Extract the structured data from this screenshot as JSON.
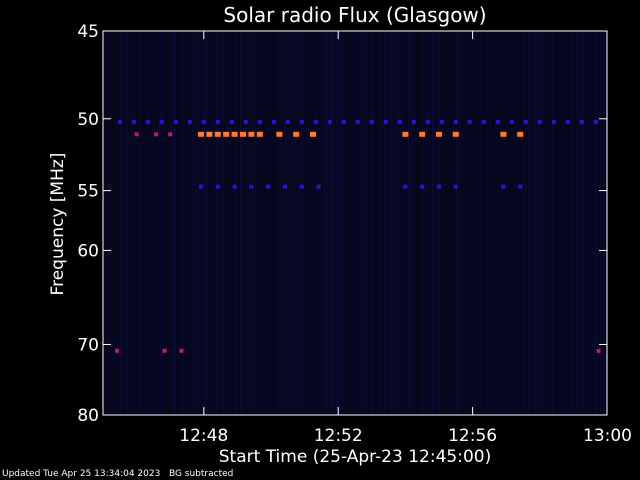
{
  "chart_data": {
    "type": "heatmap",
    "title": "Solar radio Flux (Glasgow)",
    "xlabel": "Start Time (25-Apr-23 12:45:00)",
    "ylabel": "Frequency [MHz]",
    "x_range": [
      "12:45",
      "13:00"
    ],
    "y_range": [
      45,
      80
    ],
    "x_ticks": [
      "12:48",
      "12:52",
      "12:56",
      "13:00"
    ],
    "y_ticks": [
      "45",
      "50",
      "55",
      "60",
      "70",
      "80"
    ],
    "colors": {
      "background": "#000000",
      "plot_background": "#06061a",
      "low": "#1a1ad8",
      "mid": "#c01878",
      "high": "#ff7a30",
      "axes": "#ffffff"
    },
    "features": [
      {
        "freq_mhz": 50.2,
        "level": "low",
        "times": [
          "12:45:30",
          "12:45:55",
          "12:46:20",
          "12:46:45",
          "12:47:10",
          "12:47:35",
          "12:48:00",
          "12:48:25",
          "12:48:50",
          "12:49:15",
          "12:49:40",
          "12:50:05",
          "12:50:30",
          "12:50:55",
          "12:51:20",
          "12:51:45",
          "12:52:10",
          "12:52:35",
          "12:53:00",
          "12:53:25",
          "12:53:50",
          "12:54:15",
          "12:54:40",
          "12:55:05",
          "12:55:30",
          "12:55:55",
          "12:56:20",
          "12:56:45",
          "12:57:10",
          "12:57:35",
          "12:58:00",
          "12:58:25",
          "12:58:50",
          "12:59:15",
          "12:59:40"
        ]
      },
      {
        "freq_mhz": 51.0,
        "level": "mid",
        "times": [
          "12:46:00",
          "12:46:35",
          "12:47:00"
        ]
      },
      {
        "freq_mhz": 51.0,
        "level": "high",
        "times": [
          "12:47:55",
          "12:48:10",
          "12:48:25",
          "12:48:40",
          "12:48:55",
          "12:49:10",
          "12:49:25",
          "12:49:40",
          "12:50:15",
          "12:50:45",
          "12:51:15",
          "12:54:00",
          "12:54:30",
          "12:55:00",
          "12:55:30",
          "12:56:55",
          "12:57:25"
        ]
      },
      {
        "freq_mhz": 54.7,
        "level": "low",
        "times": [
          "12:47:55",
          "12:48:25",
          "12:48:55",
          "12:49:25",
          "12:49:55",
          "12:50:25",
          "12:50:55",
          "12:51:25",
          "12:54:00",
          "12:54:30",
          "12:55:00",
          "12:55:30",
          "12:56:55",
          "12:57:25"
        ]
      },
      {
        "freq_mhz": 70.8,
        "level": "mid",
        "times": [
          "12:45:25",
          "12:46:50",
          "12:47:20",
          "12:59:45"
        ]
      }
    ]
  },
  "footer": {
    "updated": "Updated Tue Apr 25 13:34:04 2023",
    "note": "BG subtracted"
  }
}
